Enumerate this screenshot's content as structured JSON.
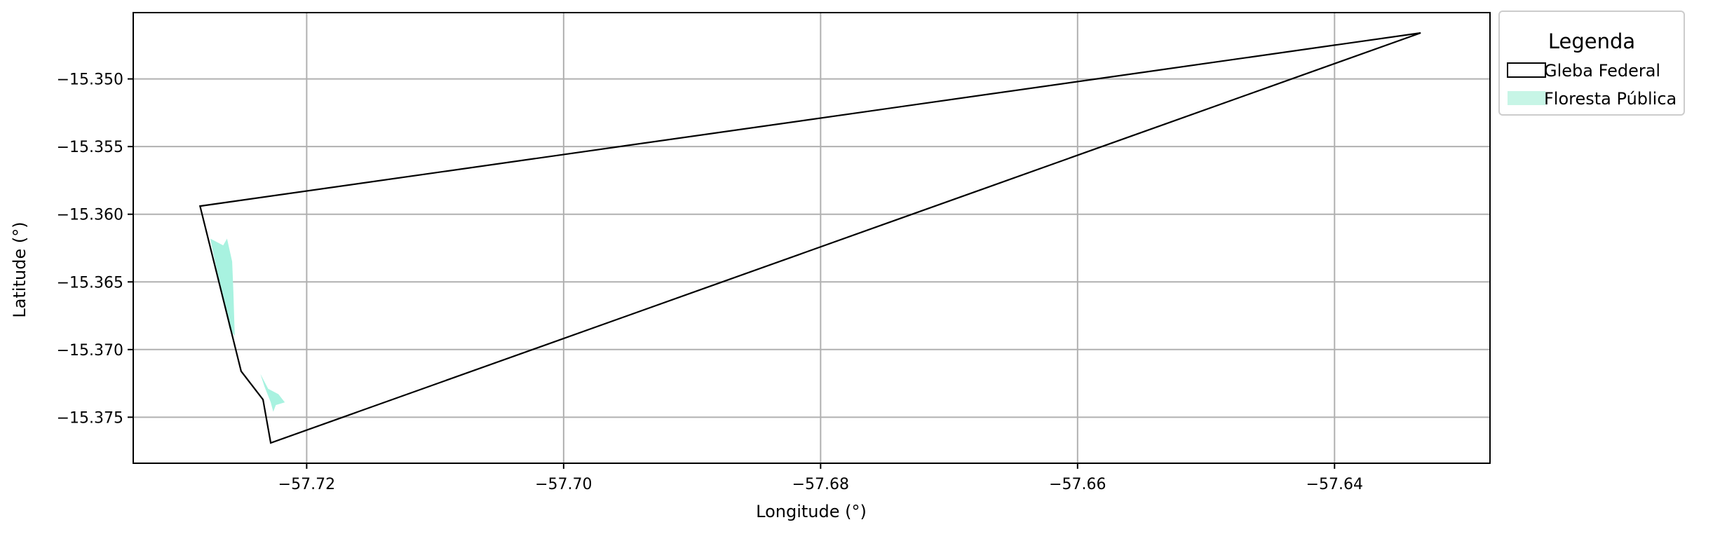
{
  "chart_data": {
    "type": "map",
    "xlabel": "Longitude (°)",
    "ylabel": "Latitude (°)",
    "xlim": [
      -57.7335,
      -57.6279
    ],
    "ylim": [
      -15.3784,
      -15.3451
    ],
    "xticks": [
      -57.72,
      -57.7,
      -57.68,
      -57.66,
      -57.64
    ],
    "yticks": [
      -15.35,
      -15.355,
      -15.36,
      -15.365,
      -15.37,
      -15.375
    ],
    "xtick_labels": [
      "−57.72",
      "−57.70",
      "−57.68",
      "−57.66",
      "−57.64"
    ],
    "ytick_labels": [
      "−15.350",
      "−15.355",
      "−15.360",
      "−15.365",
      "−15.370",
      "−15.375"
    ],
    "grid": true,
    "legend": {
      "title": "Legenda",
      "placement": "outside-top-right",
      "entries": [
        {
          "label": "Gleba Federal",
          "fill": "#ffffff",
          "stroke": "#000000"
        },
        {
          "label": "Floresta Pública",
          "fill": "#c7f5e6",
          "stroke": "none"
        }
      ]
    },
    "series": [
      {
        "name": "Gleba Federal",
        "kind": "polygon",
        "fill": "none",
        "stroke": "#000000",
        "coordinates": [
          [
            -57.7283,
            -15.3594
          ],
          [
            -57.7251,
            -15.3716
          ],
          [
            -57.7234,
            -15.3737
          ],
          [
            -57.7228,
            -15.3769
          ],
          [
            -57.6333,
            -15.3466
          ],
          [
            -57.7283,
            -15.3594
          ]
        ]
      },
      {
        "name": "Floresta Pública",
        "kind": "polygon",
        "fill": "#a8f2e0",
        "stroke": "none",
        "coordinates": [
          [
            -57.7275,
            -15.3618
          ],
          [
            -57.7265,
            -15.3623
          ],
          [
            -57.7262,
            -15.3618
          ],
          [
            -57.7258,
            -15.3635
          ],
          [
            -57.7257,
            -15.3658
          ],
          [
            -57.7256,
            -15.369
          ],
          [
            -57.726,
            -15.3685
          ],
          [
            -57.7272,
            -15.3632
          ],
          [
            -57.7275,
            -15.3618
          ]
        ]
      },
      {
        "name": "Floresta Pública",
        "kind": "polygon",
        "fill": "#a8f2e0",
        "stroke": "none",
        "coordinates": [
          [
            -57.7236,
            -15.3718
          ],
          [
            -57.7233,
            -15.3727
          ],
          [
            -57.7228,
            -15.3739
          ],
          [
            -57.7226,
            -15.3746
          ],
          [
            -57.7224,
            -15.3741
          ],
          [
            -57.7217,
            -15.3739
          ],
          [
            -57.7222,
            -15.3733
          ],
          [
            -57.723,
            -15.3729
          ],
          [
            -57.7236,
            -15.3718
          ]
        ]
      }
    ]
  }
}
